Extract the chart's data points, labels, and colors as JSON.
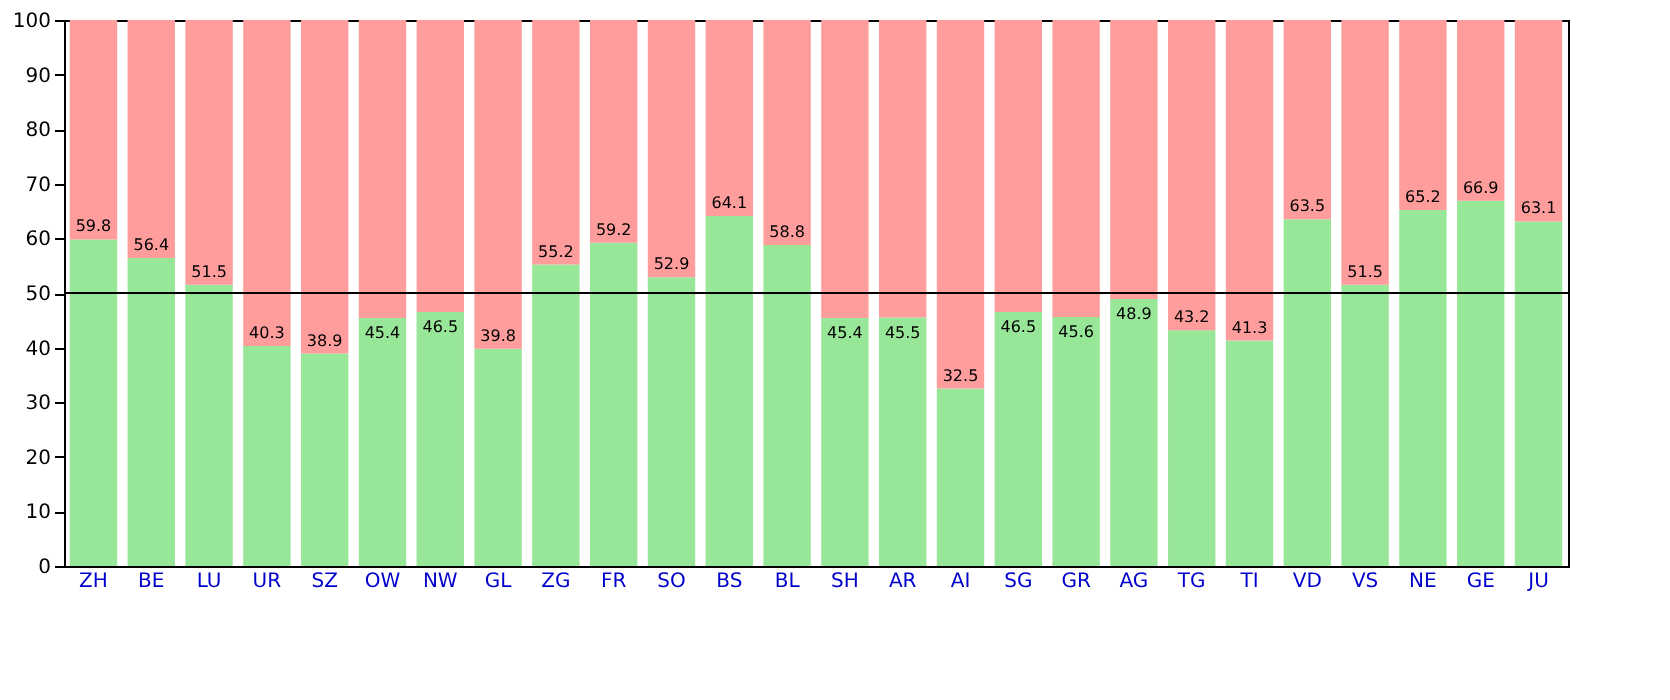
{
  "chart_data": {
    "type": "bar",
    "stacked": true,
    "categories": [
      "ZH",
      "BE",
      "LU",
      "UR",
      "SZ",
      "OW",
      "NW",
      "GL",
      "ZG",
      "FR",
      "SO",
      "BS",
      "BL",
      "SH",
      "AR",
      "AI",
      "SG",
      "GR",
      "AG",
      "TG",
      "TI",
      "VD",
      "VS",
      "NE",
      "GE",
      "JU"
    ],
    "series": [
      {
        "color": "#98e698",
        "values": [
          59.8,
          56.4,
          51.5,
          40.3,
          38.9,
          45.4,
          46.5,
          39.8,
          55.2,
          59.2,
          52.9,
          64.1,
          58.8,
          45.4,
          45.5,
          32.5,
          46.5,
          45.6,
          48.9,
          43.2,
          41.3,
          63.5,
          51.5,
          65.2,
          66.9,
          63.1
        ],
        "value_labels": [
          "59.8",
          "56.4",
          "51.5",
          "40.3",
          "38.9",
          "45.4",
          "46.5",
          "39.8",
          "55.2",
          "59.2",
          "52.9",
          "64.1",
          "58.8",
          "45.4",
          "45.5",
          "32.5",
          "46.5",
          "45.6",
          "48.9",
          "43.2",
          "41.3",
          "63.5",
          "51.5",
          "65.2",
          "66.9",
          "63.1"
        ]
      },
      {
        "color": "#ff9d9d",
        "values": [
          40.2,
          43.6,
          48.5,
          59.7,
          61.1,
          54.6,
          53.5,
          60.2,
          44.8,
          40.8,
          47.1,
          35.9,
          41.2,
          54.6,
          54.5,
          67.5,
          53.5,
          54.4,
          51.1,
          56.8,
          58.7,
          36.5,
          48.5,
          34.8,
          33.1,
          36.9
        ]
      }
    ],
    "ylim": [
      0,
      100
    ],
    "yticks": [
      0,
      10,
      20,
      30,
      40,
      50,
      60,
      70,
      80,
      90,
      100
    ],
    "ref_lines": [
      {
        "axis": "y",
        "value": 50,
        "color": "#000000"
      }
    ],
    "grid": false
  }
}
